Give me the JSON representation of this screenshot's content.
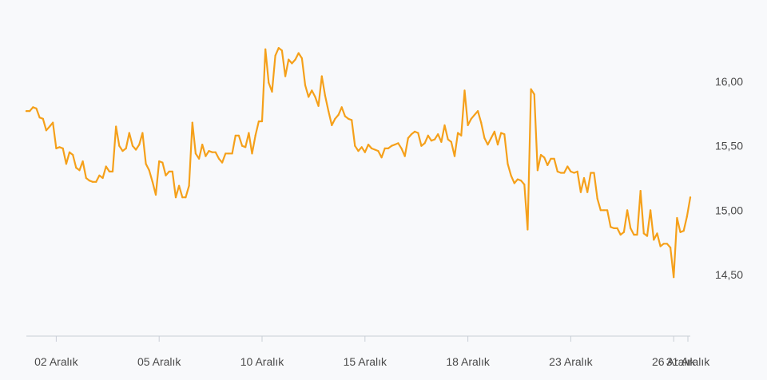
{
  "chart_data": {
    "type": "line",
    "title": "",
    "xlabel": "",
    "ylabel": "",
    "x_ticks": [
      "02 Aralık",
      "05 Aralık",
      "10 Aralık",
      "15 Aralık",
      "18 Aralık",
      "23 Aralık",
      "26 Aralık",
      "31 Aralık"
    ],
    "y_ticks": [
      "14,50",
      "15,00",
      "15,50",
      "16,00"
    ],
    "ylim": [
      14.0,
      16.3
    ],
    "grid": false,
    "legend": "none",
    "colors": {
      "line": "#f5a01a",
      "axis": "#c9ced6",
      "text": "#4a4a4a",
      "background": "#f8f9fb"
    },
    "series": [
      {
        "values": [
          15.77,
          15.77,
          15.8,
          15.79,
          15.72,
          15.71,
          15.62,
          15.65,
          15.68,
          15.48,
          15.49,
          15.48,
          15.36,
          15.45,
          15.43,
          15.33,
          15.31,
          15.38,
          15.25,
          15.23,
          15.22,
          15.22,
          15.27,
          15.25,
          15.34,
          15.3,
          15.3,
          15.65,
          15.5,
          15.46,
          15.48,
          15.6,
          15.5,
          15.47,
          15.51,
          15.6,
          15.36,
          15.31,
          15.22,
          15.12,
          15.38,
          15.37,
          15.27,
          15.3,
          15.3,
          15.1,
          15.19,
          15.1,
          15.1,
          15.19,
          15.68,
          15.44,
          15.4,
          15.51,
          15.42,
          15.46,
          15.45,
          15.45,
          15.4,
          15.37,
          15.44,
          15.44,
          15.44,
          15.58,
          15.58,
          15.5,
          15.49,
          15.6,
          15.44,
          15.58,
          15.69,
          15.69,
          16.25,
          15.99,
          15.92,
          16.2,
          16.26,
          16.24,
          16.04,
          16.17,
          16.14,
          16.17,
          16.22,
          16.18,
          15.97,
          15.88,
          15.93,
          15.88,
          15.81,
          16.04,
          15.89,
          15.77,
          15.66,
          15.71,
          15.74,
          15.8,
          15.73,
          15.71,
          15.7,
          15.5,
          15.46,
          15.49,
          15.45,
          15.51,
          15.48,
          15.47,
          15.46,
          15.41,
          15.48,
          15.48,
          15.5,
          15.51,
          15.52,
          15.48,
          15.42,
          15.56,
          15.59,
          15.61,
          15.6,
          15.5,
          15.52,
          15.58,
          15.54,
          15.55,
          15.59,
          15.53,
          15.66,
          15.55,
          15.53,
          15.42,
          15.6,
          15.58,
          15.93,
          15.66,
          15.71,
          15.74,
          15.77,
          15.68,
          15.56,
          15.51,
          15.56,
          15.61,
          15.51,
          15.6,
          15.59,
          15.36,
          15.27,
          15.21,
          15.24,
          15.23,
          15.2,
          14.85,
          15.94,
          15.9,
          15.31,
          15.43,
          15.41,
          15.35,
          15.4,
          15.4,
          15.3,
          15.29,
          15.29,
          15.34,
          15.3,
          15.29,
          15.3,
          15.14,
          15.25,
          15.14,
          15.29,
          15.29,
          15.09,
          15.0,
          15.0,
          15.0,
          14.87,
          14.86,
          14.86,
          14.81,
          14.83,
          15.0,
          14.86,
          14.81,
          14.81,
          15.15,
          14.82,
          14.8,
          15.0,
          14.77,
          14.82,
          14.72,
          14.74,
          14.74,
          14.71,
          14.48,
          14.94,
          14.83,
          14.84,
          14.95,
          15.1
        ]
      }
    ],
    "x_tick_indices": [
      9,
      40,
      71,
      102,
      133,
      164,
      195,
      226
    ]
  }
}
